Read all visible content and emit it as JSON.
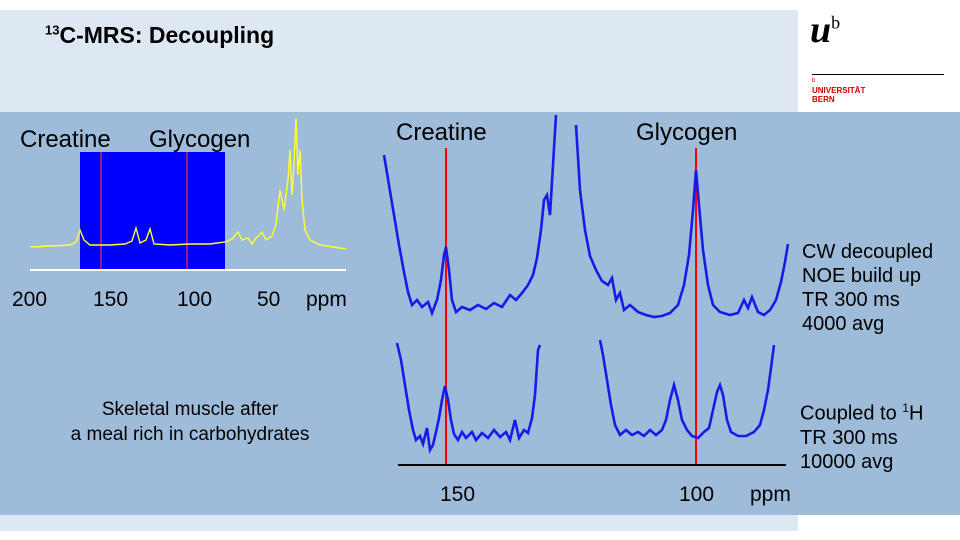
{
  "title": {
    "superscript": "13",
    "text": "C-MRS: Decoupling"
  },
  "logo": {
    "mark": "u",
    "mark_sup": "b",
    "small": "b",
    "line1": "UNIVERSITÄT",
    "line2": "BERN"
  },
  "left_spectrum": {
    "label_creatine": "Creatine",
    "label_glycogen": "Glycogen",
    "ticks": [
      "200",
      "150",
      "100",
      "50"
    ],
    "unit": "ppm",
    "colors": {
      "trace": "#ffff33",
      "highlight": "#0000ff",
      "marker": "#ff2222"
    }
  },
  "right_spectra": {
    "label_creatine": "Creatine",
    "label_glycogen": "Glycogen",
    "ticks": [
      "150",
      "100"
    ],
    "unit": "ppm",
    "colors": {
      "trace": "#1a1ae6",
      "marker": "#ff0000"
    }
  },
  "notes": {
    "decoupled": [
      "CW decoupled",
      "NOE build up",
      "TR 300 ms",
      "4000 avg"
    ],
    "coupled_prefix": "Coupled to ",
    "coupled_sup": "1",
    "coupled_suffix": "H",
    "coupled": [
      "TR 300 ms",
      "10000 avg"
    ]
  },
  "caption": [
    "Skeletal muscle after",
    "a meal rich in carbohydrates"
  ]
}
